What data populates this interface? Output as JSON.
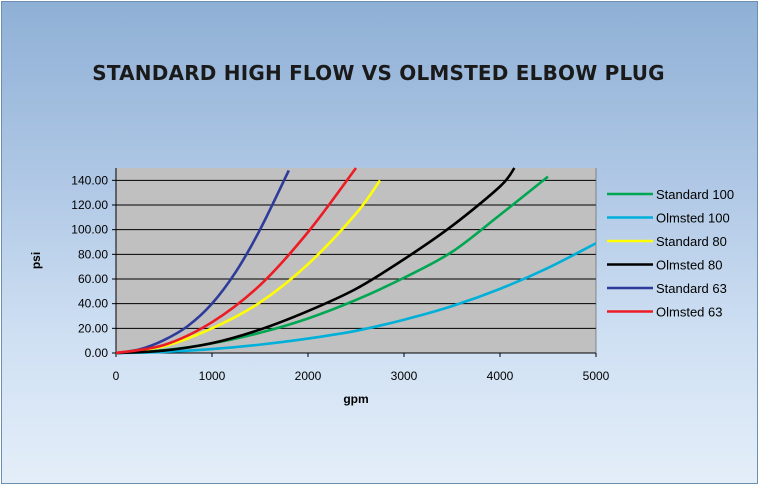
{
  "chart_data": {
    "type": "line",
    "title": "STANDARD HIGH FLOW VS OLMSTED ELBOW PLUG",
    "xlabel": "gpm",
    "ylabel": "psi",
    "xlim": [
      0,
      5000
    ],
    "ylim": [
      0,
      150
    ],
    "x_ticks": [
      "0",
      "1000",
      "2000",
      "3000",
      "4000",
      "5000"
    ],
    "y_ticks": [
      "0.00",
      "20.00",
      "40.00",
      "60.00",
      "80.00",
      "100.00",
      "120.00",
      "140.00"
    ],
    "grid": "horizontal",
    "legend_position": "right",
    "plot_background": "#c0c0c0",
    "series": [
      {
        "name": "Standard 100",
        "color": "#00a651",
        "x": [
          0,
          500,
          1000,
          1500,
          2000,
          2500,
          3000,
          3500,
          4000,
          4500
        ],
        "y": [
          0,
          2.3,
          7.8,
          16.4,
          28.0,
          43.0,
          61.0,
          82.0,
          112.0,
          143.0
        ]
      },
      {
        "name": "Olmsted 100",
        "color": "#00b0d8",
        "x": [
          0,
          500,
          1000,
          1500,
          2000,
          2500,
          3000,
          3500,
          4000,
          4500,
          5000
        ],
        "y": [
          0,
          0.9,
          3.2,
          6.8,
          11.7,
          18.0,
          27.0,
          38.0,
          52.0,
          69.0,
          89.0
        ]
      },
      {
        "name": "Standard 80",
        "color": "#ffff00",
        "x": [
          0,
          500,
          1000,
          1500,
          2000,
          2500,
          2750
        ],
        "y": [
          0,
          5.5,
          20.0,
          41.0,
          72.0,
          113.0,
          140.0
        ]
      },
      {
        "name": "Olmsted 80",
        "color": "#000000",
        "x": [
          0,
          500,
          1000,
          1500,
          2000,
          2500,
          3000,
          3500,
          4000,
          4150
        ],
        "y": [
          0,
          2.0,
          8.0,
          19.0,
          34.0,
          52.0,
          76.0,
          103.0,
          135.0,
          150.0
        ]
      },
      {
        "name": "Standard 63",
        "color": "#2e3b9a",
        "x": [
          0,
          250,
          500,
          750,
          1000,
          1250,
          1500,
          1800
        ],
        "y": [
          0,
          3.0,
          10.5,
          22.0,
          40.0,
          66.0,
          100.0,
          148.0
        ]
      },
      {
        "name": "Olmsted 63",
        "color": "#ed1c24",
        "x": [
          0,
          500,
          1000,
          1500,
          2000,
          2500
        ],
        "y": [
          0,
          6.5,
          25.0,
          55.0,
          98.0,
          150.0
        ]
      }
    ]
  }
}
